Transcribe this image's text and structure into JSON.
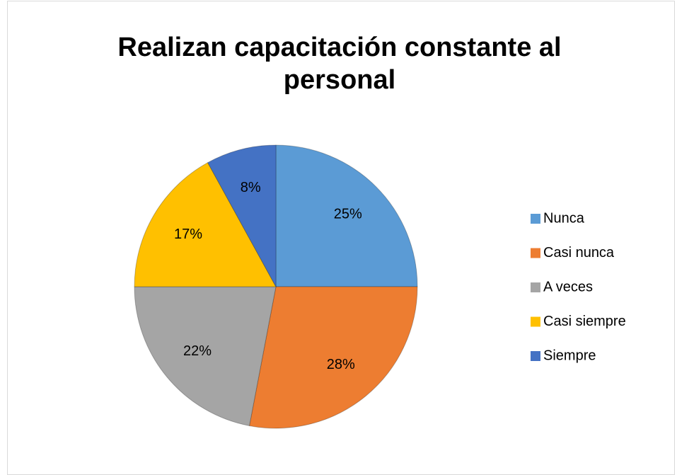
{
  "chart_data": {
    "type": "pie",
    "title": "Realizan capacitación constante al personal",
    "categories": [
      "Nunca",
      "Casi nunca",
      "A veces",
      "Casi siempre",
      "Siempre"
    ],
    "values": [
      25,
      28,
      22,
      17,
      8
    ],
    "value_labels": [
      "25%",
      "28%",
      "22%",
      "17%",
      "8%"
    ],
    "colors": [
      "#5b9bd5",
      "#ed7d31",
      "#a5a5a5",
      "#ffc000",
      "#4472c4"
    ],
    "legend": "right"
  }
}
